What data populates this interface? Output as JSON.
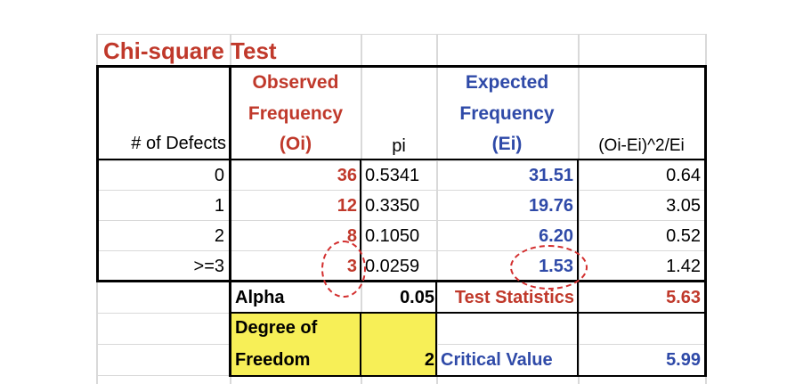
{
  "title": "Chi-square Test",
  "headers": {
    "defects": "# of Defects",
    "observed_line1": "Observed",
    "observed_line2": "Frequency",
    "observed_line3": "(Oi)",
    "pi": "pi",
    "expected_line1": "Expected",
    "expected_line2": "Frequency",
    "expected_line3": "(Ei)",
    "chi": "(Oi-Ei)^2/Ei"
  },
  "rows": [
    {
      "defects": "0",
      "observed": "36",
      "pi": "0.5341",
      "expected": "31.51",
      "chi": "0.64"
    },
    {
      "defects": "1",
      "observed": "12",
      "pi": "0.3350",
      "expected": "19.76",
      "chi": "3.05"
    },
    {
      "defects": "2",
      "observed": "8",
      "pi": "0.1050",
      "expected": "6.20",
      "chi": "0.52"
    },
    {
      "defects": ">=3",
      "observed": "3",
      "pi": "0.0259",
      "expected": "1.53",
      "chi": "1.42"
    }
  ],
  "summary": {
    "alpha_label": "Alpha",
    "alpha_value": "0.05",
    "test_stat_label": "Test Statistics",
    "test_stat_value": "5.63",
    "dof_label_line1": "Degree of",
    "dof_label_line2": "Freedom",
    "dof_value": "2",
    "critical_label": "Critical Value",
    "critical_value": "5.99"
  },
  "colors": {
    "red": "#c0392b",
    "blue": "#2f4aa8",
    "highlight": "#f7ef57",
    "circle": "#d32f2f"
  }
}
